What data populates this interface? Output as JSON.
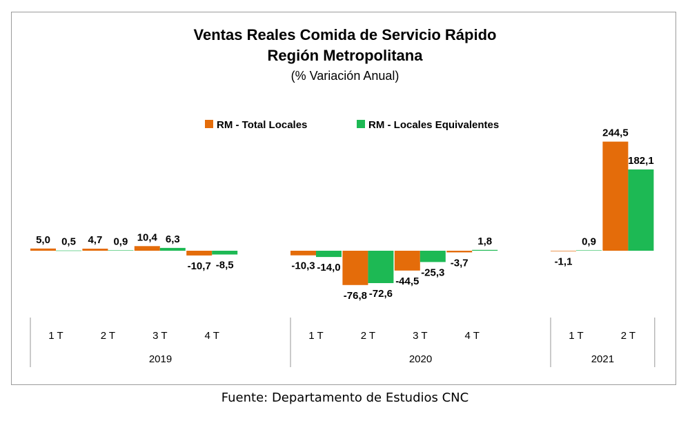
{
  "chart_data": {
    "type": "bar",
    "title": "Ventas Reales Comida de Servicio Rápido",
    "title_line2": "Región Metropolitana",
    "subtitle": "(% Variación Anual)",
    "legend_position": "top-center",
    "grid": false,
    "ylim": [
      -100,
      270
    ],
    "series": [
      {
        "name": "RM - Total Locales",
        "color": "#E46C0A",
        "values": [
          5.0,
          4.7,
          10.4,
          -10.7,
          null,
          -10.3,
          -76.8,
          -44.5,
          -3.7,
          null,
          -1.1,
          244.5
        ],
        "labels": [
          "5,0",
          "4,7",
          "10,4",
          "-10,7",
          "",
          "-10,3",
          "-76,8",
          "-44,5",
          "-3,7",
          "",
          "-1,1",
          "244,5"
        ]
      },
      {
        "name": "RM - Locales Equivalentes",
        "color": "#1DB954",
        "values": [
          0.5,
          0.9,
          6.3,
          -8.5,
          null,
          -14.0,
          -72.6,
          -25.3,
          1.8,
          null,
          0.9,
          182.1
        ],
        "labels": [
          "0,5",
          "0,9",
          "6,3",
          "-8,5",
          "",
          "-14,0",
          "-72,6",
          "-25,3",
          "1,8",
          "",
          "0,9",
          "182,1"
        ]
      }
    ],
    "categories": [
      "1 T",
      "2 T",
      "3 T",
      "4 T",
      "",
      "1 T",
      "2 T",
      "3 T",
      "4 T",
      "",
      "1 T",
      "2 T"
    ],
    "groups": [
      {
        "label": "2019",
        "start": 0,
        "end": 4
      },
      {
        "label": "2020",
        "start": 5,
        "end": 9
      },
      {
        "label": "2021",
        "start": 10,
        "end": 11
      }
    ]
  },
  "source_text": "Fuente: Departamento de Estudios CNC"
}
